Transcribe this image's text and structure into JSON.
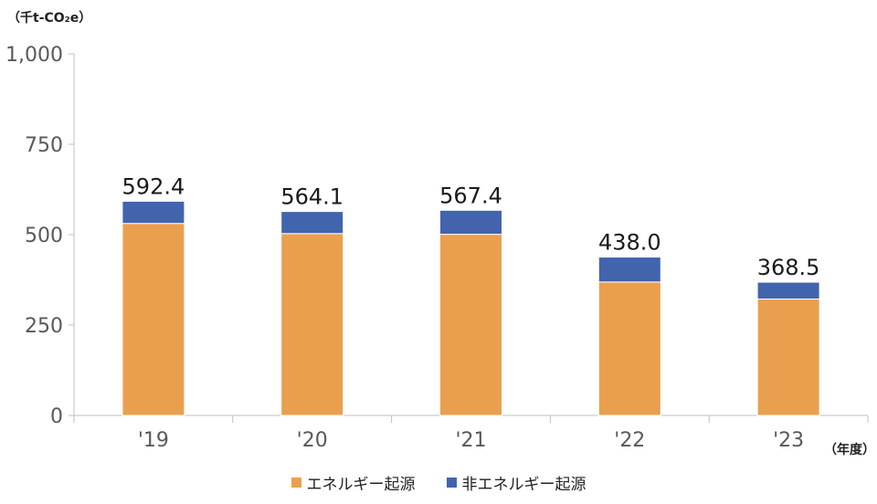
{
  "chart_data": {
    "type": "bar",
    "stacked": true,
    "y_unit": "（千t-CO₂e）",
    "x_unit": "（年度）",
    "categories": [
      "'19",
      "'20",
      "'21",
      "'22",
      "'23"
    ],
    "series": [
      {
        "name": "エネルギー起源",
        "color": "#EA9F4E",
        "values": [
          531,
          503,
          501,
          369,
          322
        ]
      },
      {
        "name": "非エネルギー起源",
        "color": "#4264AD",
        "values": [
          61.4,
          61.1,
          66.4,
          69.0,
          46.5
        ]
      }
    ],
    "totals": [
      "592.4",
      "564.1",
      "567.4",
      "438.0",
      "368.5"
    ],
    "ylim": [
      0,
      1000
    ],
    "yticks": [
      0,
      250,
      500,
      750,
      1000
    ],
    "ytick_labels": [
      "0",
      "250",
      "500",
      "750",
      "1,000"
    ],
    "grid": false,
    "legend_position": "bottom"
  }
}
